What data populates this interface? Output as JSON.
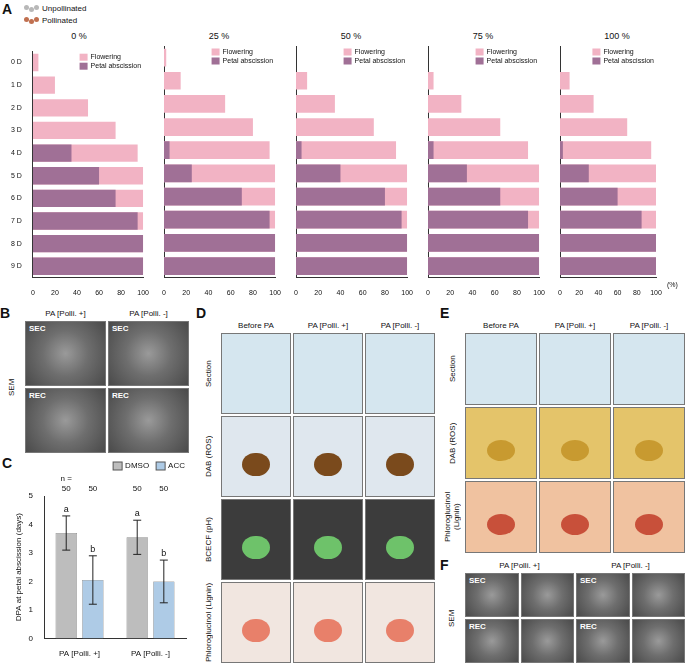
{
  "chart_data": [
    {
      "type": "bar",
      "panel": "A",
      "title": "0 %",
      "orientation": "horizontal",
      "categories": [
        "0 D",
        "1 D",
        "2 D",
        "3 D",
        "4 D",
        "5 D",
        "6 D",
        "7 D",
        "8 D",
        "9 D"
      ],
      "series": [
        {
          "name": "Flowering",
          "color": "#f2b3c4",
          "values": [
            5,
            20,
            50,
            75,
            95,
            100,
            100,
            100,
            100,
            100
          ]
        },
        {
          "name": "Petal abscission",
          "color": "#a07096",
          "values": [
            0,
            0,
            0,
            0,
            35,
            60,
            75,
            95,
            100,
            100
          ]
        }
      ],
      "xlim": [
        0,
        100
      ],
      "xticks": [
        0,
        20,
        40,
        60,
        80,
        100
      ],
      "grid": false,
      "legend": "top right"
    },
    {
      "type": "bar",
      "title": "25 %",
      "orientation": "horizontal",
      "categories": [
        "0 D",
        "1 D",
        "2 D",
        "3 D",
        "4 D",
        "5 D",
        "6 D",
        "7 D",
        "8 D",
        "9 D"
      ],
      "series": [
        {
          "name": "Flowering",
          "color": "#f2b3c4",
          "values": [
            2,
            15,
            55,
            80,
            95,
            100,
            100,
            100,
            100,
            100
          ]
        },
        {
          "name": "Petal abscission",
          "color": "#a07096",
          "values": [
            0,
            0,
            0,
            0,
            5,
            25,
            70,
            95,
            100,
            100
          ]
        }
      ],
      "xlim": [
        0,
        100
      ],
      "xticks": [
        0,
        20,
        40,
        60,
        80,
        100
      ],
      "grid": false,
      "legend": "top right",
      "tick_labels": "x"
    },
    {
      "type": "bar",
      "title": "50 %",
      "orientation": "horizontal",
      "categories": [
        "0 D",
        "1 D",
        "2 D",
        "3 D",
        "4 D",
        "5 D",
        "6 D",
        "7 D",
        "8 D",
        "9 D"
      ],
      "series": [
        {
          "name": "Flowering",
          "color": "#f2b3c4",
          "values": [
            0,
            10,
            35,
            70,
            90,
            100,
            100,
            100,
            100,
            100
          ]
        },
        {
          "name": "Petal abscission",
          "color": "#a07096",
          "values": [
            0,
            0,
            0,
            0,
            5,
            40,
            80,
            95,
            100,
            100
          ]
        }
      ],
      "xlim": [
        0,
        100
      ],
      "xticks": [
        0,
        20,
        40,
        60,
        80,
        100
      ],
      "grid": false,
      "legend": "top right",
      "tick_labels": "x"
    },
    {
      "type": "bar",
      "title": "75 %",
      "orientation": "horizontal",
      "categories": [
        "0 D",
        "1 D",
        "2 D",
        "3 D",
        "4 D",
        "5 D",
        "6 D",
        "7 D",
        "8 D",
        "9 D"
      ],
      "series": [
        {
          "name": "Flowering",
          "color": "#f2b3c4",
          "values": [
            0,
            5,
            30,
            65,
            90,
            100,
            100,
            100,
            100,
            100
          ]
        },
        {
          "name": "Petal abscission",
          "color": "#a07096",
          "values": [
            0,
            0,
            0,
            0,
            5,
            35,
            65,
            90,
            100,
            100
          ]
        }
      ],
      "xlim": [
        0,
        100
      ],
      "xticks": [
        0,
        20,
        40,
        60,
        80,
        100
      ],
      "grid": false,
      "legend": "top right",
      "tick_labels": "x"
    },
    {
      "type": "bar",
      "title": "100 %",
      "orientation": "horizontal",
      "x_label": "(%)",
      "categories": [
        "0 D",
        "1 D",
        "2 D",
        "3 D",
        "4 D",
        "5 D",
        "6 D",
        "7 D",
        "8 D",
        "9 D"
      ],
      "series": [
        {
          "name": "Flowering",
          "color": "#f2b3c4",
          "values": [
            0,
            10,
            35,
            70,
            95,
            100,
            100,
            100,
            100,
            100
          ]
        },
        {
          "name": "Petal abscission",
          "color": "#a07096",
          "values": [
            0,
            0,
            0,
            0,
            3,
            30,
            60,
            85,
            100,
            100
          ]
        }
      ],
      "xlim": [
        0,
        100
      ],
      "xticks": [
        0,
        20,
        40,
        60,
        80,
        100
      ],
      "grid": false,
      "legend": "top right",
      "tick_labels": "x"
    },
    {
      "type": "bar",
      "panel": "C",
      "categories": [
        "PA [Polli. +]",
        "PA [Polli. -]"
      ],
      "y_label": "DPA at petal abscission (days)",
      "n_label": "n =",
      "series": [
        {
          "name": "DMSO",
          "color": "#bdbdbd",
          "values": [
            3.7,
            3.55
          ],
          "errors": [
            0.6,
            0.6
          ],
          "significance": [
            "a",
            "a"
          ],
          "n": [
            50,
            50
          ]
        },
        {
          "name": "ACC",
          "color": "#aecbe6",
          "values": [
            2.05,
            2.0
          ],
          "errors": [
            0.85,
            0.75
          ],
          "significance": [
            "b",
            "b"
          ],
          "n": [
            50,
            50
          ]
        }
      ],
      "ylim": [
        0,
        5
      ],
      "yticks": [
        0,
        1,
        2,
        3,
        4,
        5
      ],
      "grid": false,
      "legend": "top right"
    }
  ],
  "key": [
    {
      "label": "Unpollinated",
      "color": "#b8b8b8"
    },
    {
      "label": "Pollinated",
      "color": "#c07050"
    }
  ],
  "panels": {
    "B": {
      "letter": "B",
      "columns": [
        "PA [Polli. +]",
        "PA [Polli. -]"
      ],
      "row_group": "SEM",
      "rows": [
        "SEC",
        "REC"
      ]
    },
    "D": {
      "letter": "D",
      "columns": [
        "Before PA",
        "PA [Polli. +]",
        "PA [Polli. -]"
      ],
      "rows": [
        "Section",
        "DAB (ROS)",
        "BCECF (pH)",
        "Phloroglucinol (Lignin)"
      ]
    },
    "E": {
      "letter": "E",
      "columns": [
        "Before PA",
        "PA [Polli. +]",
        "PA [Polli. -]"
      ],
      "rows": [
        "Section",
        "DAB (ROS)",
        "Phloroglucinol (Lignin)"
      ]
    },
    "F": {
      "letter": "F",
      "columns": [
        "PA [Polli. +]",
        "PA [Polli. -]"
      ],
      "row_group": "SEM",
      "rows": [
        "SEC",
        "REC"
      ]
    }
  }
}
